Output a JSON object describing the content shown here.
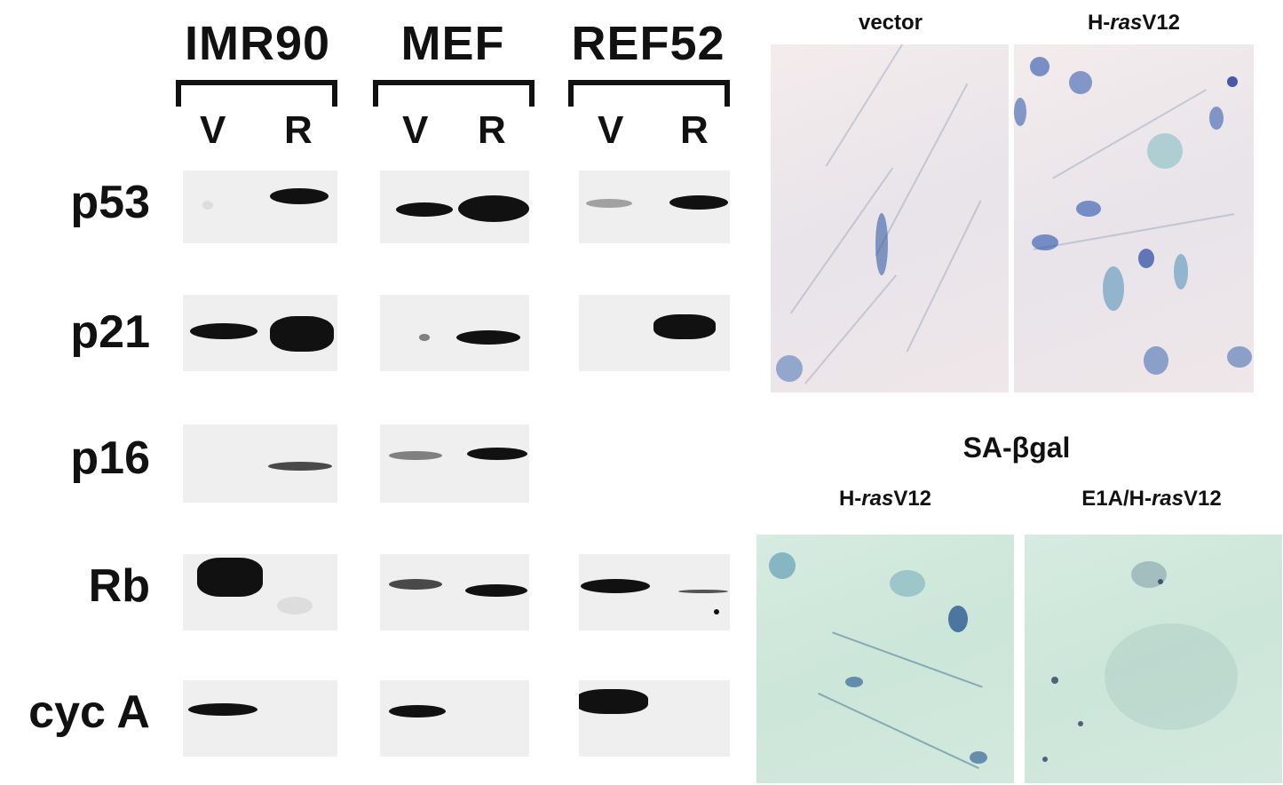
{
  "western_blot": {
    "cell_lines": [
      {
        "name": "IMR90",
        "lanes": [
          "V",
          "R"
        ]
      },
      {
        "name": "MEF",
        "lanes": [
          "V",
          "R"
        ]
      },
      {
        "name": "REF52",
        "lanes": [
          "V",
          "R"
        ]
      }
    ],
    "proteins": [
      "p53",
      "p21",
      "p16",
      "Rb",
      "cyc A"
    ]
  },
  "staining": {
    "top_labels": {
      "left": "vector",
      "right_prefix": "H-",
      "right_italic": "ras",
      "right_suffix": "V12"
    },
    "section_title": "SA-βgal",
    "bottom_labels": {
      "left_prefix": "H-",
      "left_italic": "ras",
      "left_suffix": "V12",
      "right_prefix": "E1A/H-",
      "right_italic": "ras",
      "right_suffix": "V12"
    }
  },
  "colors": {
    "band": "#111111",
    "blot_bg": "#efefef",
    "stain_blue": "#2a5aa8",
    "stain_teal": "#3f9aa0"
  }
}
